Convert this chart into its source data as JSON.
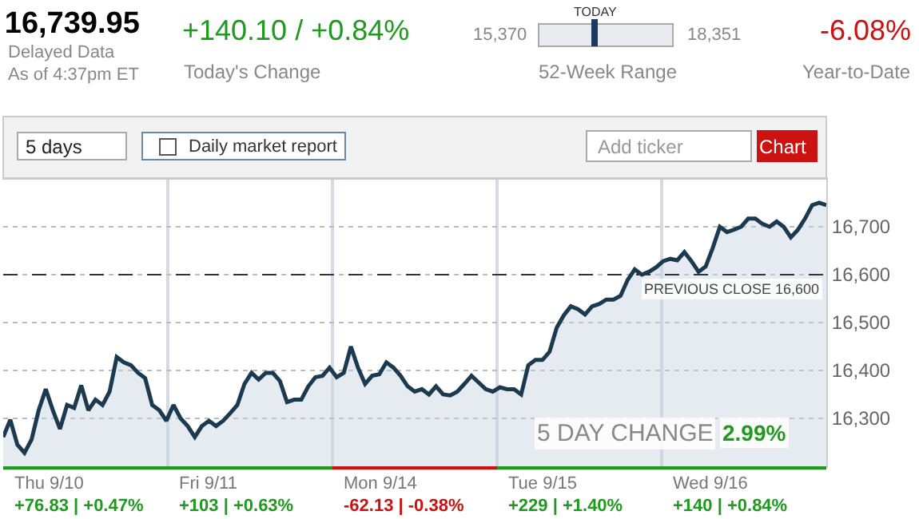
{
  "chart_data": {
    "type": "area",
    "title": "16,739.95",
    "annotations": [
      "Delayed Data",
      "As of 4:37pm ET",
      "+140.10 / +0.84%",
      "Today's Change",
      "TODAY",
      "15,370",
      "18,351",
      "52-Week Range",
      "-6.08%",
      "Year-to-Date",
      "5 days",
      "Daily market report",
      "Add ticker",
      "Chart",
      "5 DAY CHANGE",
      "2.99%",
      "Thu 9/10",
      "+76.83 | +0.47%",
      "Fri 9/11",
      "+103 | +0.63%",
      "Mon 9/14",
      "-62.13 | -0.38%",
      "Tue 9/15",
      "+229 | +1.40%",
      "Wed 9/16",
      "+140 | +0.84%"
    ],
    "categories": [
      null,
      null,
      null,
      null,
      null,
      null,
      null,
      null,
      null,
      null,
      null,
      null,
      null,
      null,
      null,
      null,
      null,
      null,
      null,
      null,
      null,
      null,
      null,
      null,
      null,
      null,
      null,
      null,
      null,
      null,
      null,
      null,
      null,
      null,
      null,
      null,
      null,
      null,
      null,
      null,
      null,
      null,
      null,
      null,
      null,
      null,
      null,
      null,
      null,
      null,
      null,
      null,
      null,
      null,
      null,
      null,
      null,
      null,
      null,
      null,
      null,
      null,
      null,
      null,
      null,
      null,
      null,
      null,
      null,
      null,
      null,
      null,
      null,
      null,
      null,
      null,
      null,
      null,
      null,
      null,
      null,
      null,
      null,
      null,
      null,
      null,
      null,
      null,
      null,
      null,
      null,
      null,
      null,
      null,
      null,
      null,
      null,
      null,
      null,
      null,
      null,
      null,
      null,
      null,
      null,
      null,
      null,
      null,
      null,
      null,
      null,
      null,
      null,
      null,
      null,
      null,
      null
    ],
    "series": [
      {
        "color": "#1c3a4f",
        "values": [
          16261,
          16297,
          16245,
          16228,
          16256,
          16317,
          16361,
          16317,
          16278,
          16328,
          16322,
          16369,
          16317,
          16339,
          16328,
          16356,
          16428,
          16417,
          16411,
          16395,
          16384,
          16328,
          16317,
          16295,
          16328,
          16300,
          16284,
          16261,
          16284,
          16295,
          16284,
          16295,
          16311,
          16328,
          16372,
          16395,
          16381,
          16395,
          16395,
          16378,
          16334,
          16339,
          16339,
          16367,
          16386,
          16389,
          16406,
          16386,
          16395,
          16450,
          16406,
          16372,
          16389,
          16392,
          16417,
          16406,
          16389,
          16367,
          16356,
          16361,
          16350,
          16367,
          16350,
          16348,
          16356,
          16372,
          16389,
          16375,
          16361,
          16356,
          16365,
          16361,
          16361,
          16350,
          16411,
          16422,
          16422,
          16439,
          16489,
          16515,
          16534,
          16528,
          16517,
          16534,
          16539,
          16548,
          16548,
          16556,
          16589,
          16611,
          16600,
          16606,
          16615,
          16628,
          16633,
          16630,
          16647,
          16628,
          16606,
          16617,
          16656,
          16700,
          16689,
          16694,
          16700,
          16717,
          16717,
          16706,
          16700,
          16711,
          16700,
          16678,
          16694,
          16717,
          16745,
          16750,
          16745
        ]
      }
    ],
    "ylim": [
      16200,
      16800
    ],
    "yticks": [
      {
        "value": 16300,
        "label": "16,300"
      },
      {
        "value": 16400,
        "label": "16,400"
      },
      {
        "value": 16500,
        "label": "16,500"
      },
      {
        "value": 16600,
        "label": "16,600"
      },
      {
        "value": 16700,
        "label": "16,700"
      }
    ],
    "ref_lines": [
      {
        "axis": "y",
        "value": 16600,
        "label": "PREVIOUS CLOSE 16,600",
        "line_style": "dashed",
        "color": "#333333"
      }
    ],
    "grid": true,
    "tick_labels": "y",
    "legend": false,
    "line_style": "solid",
    "marker": "none"
  }
}
